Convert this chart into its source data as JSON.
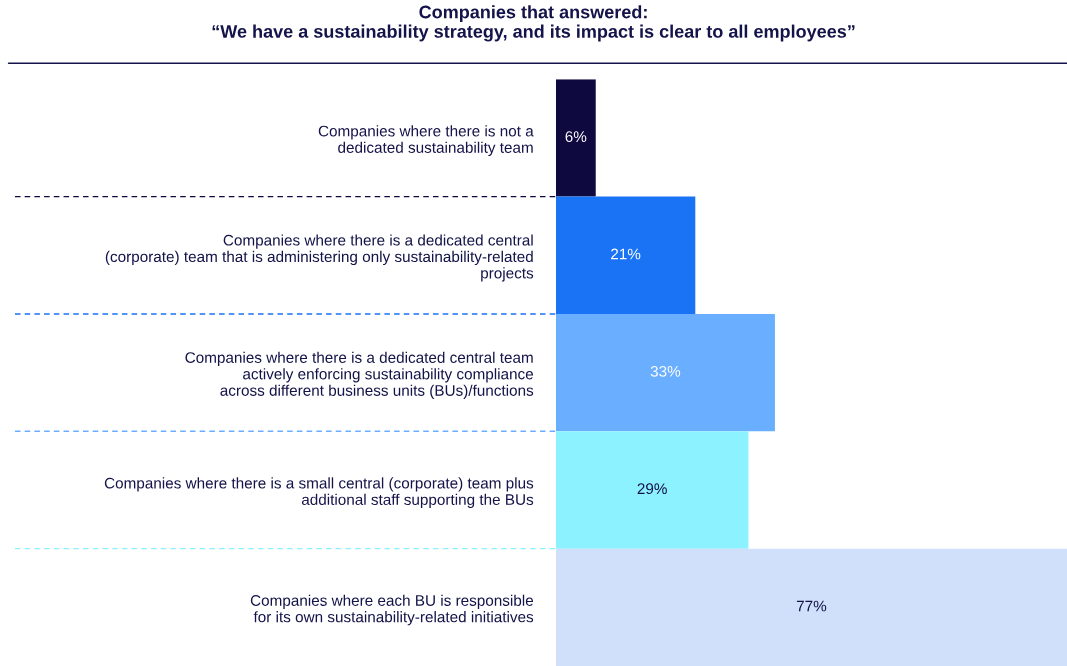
{
  "chart_data": {
    "type": "bar",
    "orientation": "horizontal",
    "title": "Companies that answered:\n“We have a sustainability strategy, and its impact is clear to all employees”",
    "categories": [
      "Companies where there is not a\ndedicated sustainability team",
      "Companies where there is a dedicated central\n(corporate) team that is administering only sustainability-related\nprojects",
      "Companies where there is a dedicated central team\nactively enforcing sustainability compliance\nacross different business units (BUs)/functions",
      "Companies where there is a small central (corporate) team plus\nadditional staff supporting the BUs",
      "Companies where each BU is responsible\nfor its own sustainability-related initiatives"
    ],
    "values": [
      6,
      21,
      33,
      29,
      77
    ],
    "value_labels": [
      "6%",
      "21%",
      "33%",
      "29%",
      "77%"
    ],
    "colors": [
      "#0e0a40",
      "#1a73f5",
      "#6aaeff",
      "#8cf2ff",
      "#d0e0fa"
    ],
    "tick_labels": "y",
    "grid": false
  }
}
